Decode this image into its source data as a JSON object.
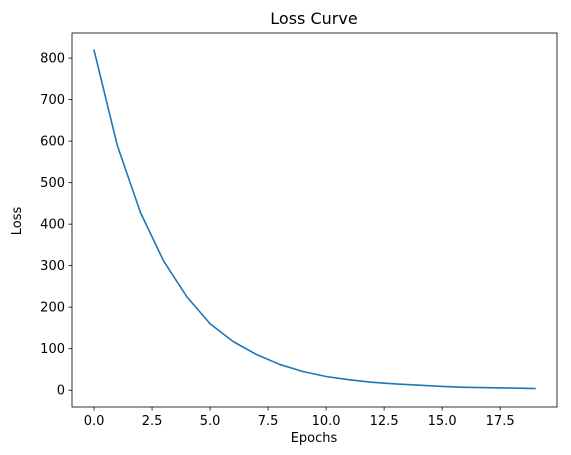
{
  "chart_data": {
    "type": "line",
    "title": "Loss Curve",
    "xlabel": "Epochs",
    "ylabel": "Loss",
    "xlim": [
      -0.95,
      19.95
    ],
    "ylim": [
      -40.5,
      860.5
    ],
    "x_ticks": [
      0,
      2.5,
      5,
      7.5,
      10,
      12.5,
      15,
      17.5
    ],
    "x_tick_labels": [
      "0.0",
      "2.5",
      "5.0",
      "7.5",
      "10.0",
      "12.5",
      "15.0",
      "17.5"
    ],
    "y_ticks": [
      0,
      100,
      200,
      300,
      400,
      500,
      600,
      700,
      800
    ],
    "y_tick_labels": [
      "0",
      "100",
      "200",
      "300",
      "400",
      "500",
      "600",
      "700",
      "800"
    ],
    "grid": false,
    "series": [
      {
        "color": "#1f77b4",
        "x": [
          0,
          1,
          2,
          3,
          4,
          5,
          6,
          7,
          8,
          9,
          10,
          11,
          12,
          13,
          14,
          15,
          16,
          17,
          18,
          19
        ],
        "values": [
          819,
          590,
          428,
          311,
          225,
          160,
          117,
          86,
          62,
          45,
          33,
          25,
          19,
          15,
          12,
          9,
          7,
          6,
          5,
          4
        ]
      }
    ]
  }
}
